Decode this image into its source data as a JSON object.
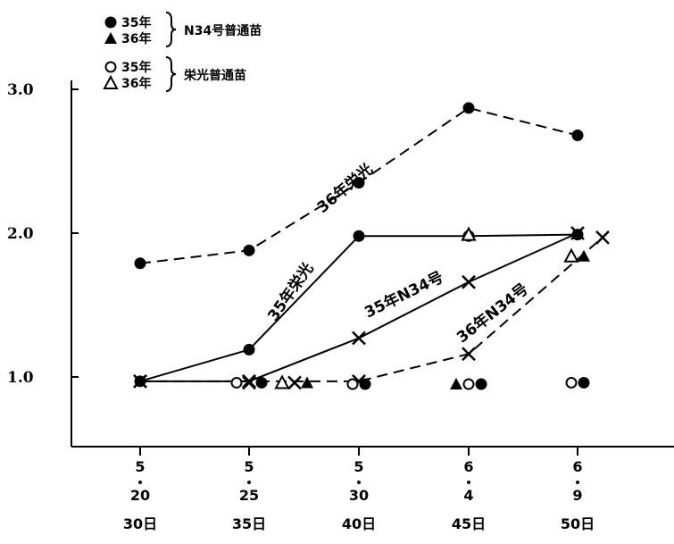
{
  "chart_data": {
    "type": "line",
    "y_ticks": [
      "1.0",
      "2.0",
      "3.0"
    ],
    "ylim": [
      0.5,
      3.0
    ],
    "x_ticks": [
      {
        "month": "5",
        "day": "20",
        "days": "30日"
      },
      {
        "month": "5",
        "day": "25",
        "days": "35日"
      },
      {
        "month": "5",
        "day": "30",
        "days": "40日"
      },
      {
        "month": "6",
        "day": "4",
        "days": "45日"
      },
      {
        "month": "6",
        "day": "9",
        "days": "50日"
      }
    ],
    "legend": {
      "group1": {
        "label": "N34号普通苗",
        "entries": [
          {
            "marker": "filled-circle",
            "label": "35年"
          },
          {
            "marker": "filled-triangle",
            "label": "36年"
          }
        ]
      },
      "group2": {
        "label": "栄光普通苗",
        "entries": [
          {
            "marker": "open-circle",
            "label": "35年"
          },
          {
            "marker": "open-triangle",
            "label": "36年"
          }
        ]
      }
    },
    "series": [
      {
        "name": "36年栄光",
        "style": "dashed",
        "marker": "filled-circle",
        "x": [
          "5.20",
          "5.25",
          "5.30",
          "6.4",
          "6.9"
        ],
        "values": [
          1.79,
          1.88,
          2.35,
          2.87,
          2.68
        ]
      },
      {
        "name": "35年栄光",
        "style": "solid",
        "marker": "filled-circle",
        "x": [
          "5.20",
          "5.25",
          "5.30",
          "6.4",
          "6.9"
        ],
        "values": [
          0.97,
          1.19,
          1.98,
          1.98,
          1.99
        ]
      },
      {
        "name": "35年N34号",
        "style": "solid",
        "marker": "cross",
        "x": [
          "5.20",
          "5.25",
          "5.30",
          "6.4",
          "6.9"
        ],
        "values": [
          0.97,
          0.97,
          1.27,
          1.66,
          2.0
        ]
      },
      {
        "name": "36年N34号",
        "style": "dashed",
        "marker": "cross",
        "x": [
          "5.20",
          "5.25",
          "5.30",
          "6.4",
          "6.9"
        ],
        "values": [
          0.97,
          0.97,
          0.97,
          1.16,
          1.97
        ]
      }
    ],
    "series_labels": [
      "36年栄光",
      "35年栄光",
      "35年N34号",
      "36年N34号"
    ],
    "baseline_markers": [
      {
        "x": "5.25",
        "markers": [
          "open-circle",
          "cross",
          "filled-circle"
        ],
        "value": 0.96
      },
      {
        "x": "5.27",
        "markers": [
          "open-triangle",
          "cross",
          "filled-triangle"
        ],
        "value": 0.96
      },
      {
        "x": "5.30",
        "markers": [
          "open-circle",
          "filled-circle"
        ],
        "value": 0.95
      },
      {
        "x": "6.4",
        "markers": [
          "filled-triangle",
          "open-circle",
          "filled-circle"
        ],
        "value": 0.95
      },
      {
        "x": "6.9",
        "markers": [
          "open-circle",
          "filled-circle"
        ],
        "value": 0.96
      },
      {
        "x": "6.4",
        "markers": [
          "open-triangle"
        ],
        "value": 1.99
      },
      {
        "x": "6.9",
        "markers": [
          "open-triangle",
          "filled-triangle"
        ],
        "value": 1.84
      }
    ],
    "grid": false
  }
}
